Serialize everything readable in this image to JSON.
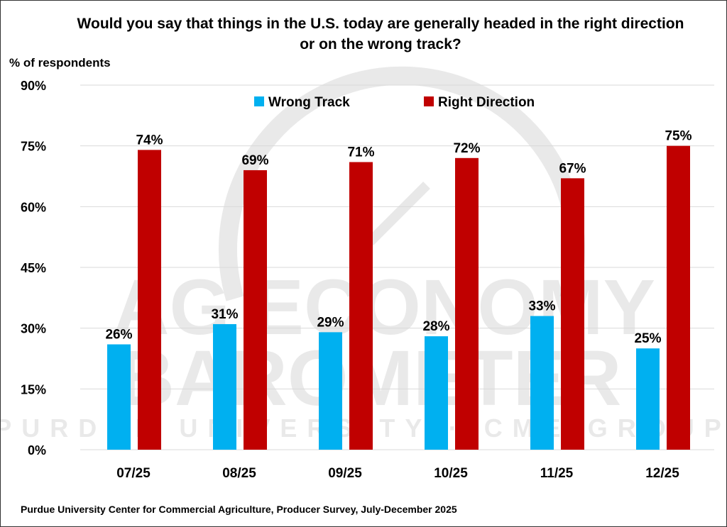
{
  "chart_data": {
    "type": "bar",
    "title": "Would you say that things in the U.S. today are generally headed in the right direction or on the wrong track?",
    "ylabel": "% of respondents",
    "xlabel": "",
    "categories": [
      "07/25",
      "08/25",
      "09/25",
      "10/25",
      "11/25",
      "12/25"
    ],
    "series": [
      {
        "name": "Wrong Track",
        "color": "#00B0F0",
        "values": [
          26,
          31,
          29,
          28,
          33,
          25
        ]
      },
      {
        "name": "Right Direction",
        "color": "#C00000",
        "values": [
          74,
          69,
          71,
          72,
          67,
          75
        ]
      }
    ],
    "ylim": [
      0,
      90
    ],
    "yticks": [
      0,
      15,
      30,
      45,
      60,
      75,
      90
    ],
    "ytick_suffix": "%",
    "grid": true,
    "legend": "top"
  },
  "source": "Purdue University Center for Commercial Agriculture, Producer Survey, July-December 2025",
  "watermark": {
    "line1": "AG ECONOMY",
    "line2": "BAROMETER",
    "line3": "PURDUE UNIVERSITY · CME GROUP"
  }
}
